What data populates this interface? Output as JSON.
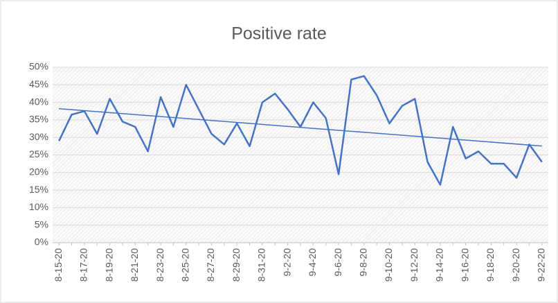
{
  "chart_data": {
    "type": "line",
    "title": "Positive rate",
    "categories": [
      "8-15-20",
      null,
      "8-17-20",
      null,
      "8-19-20",
      null,
      "8-21-20",
      null,
      "8-23-20",
      null,
      "8-25-20",
      null,
      "8-27-20",
      null,
      "8-29-20",
      null,
      "8-31-20",
      null,
      "9-2-20",
      null,
      "9-4-20",
      null,
      "9-6-20",
      null,
      "9-8-20",
      null,
      "9-10-20",
      null,
      "9-12-20",
      null,
      "9-14-20",
      null,
      "9-16-20",
      null,
      "9-18-20",
      null,
      "9-20-20",
      null,
      "9-22-20"
    ],
    "values": [
      29,
      36.5,
      37.5,
      31,
      41,
      34.5,
      33,
      26,
      41.5,
      33,
      45,
      38,
      31,
      28,
      34,
      27.5,
      40,
      42.5,
      38,
      33,
      40,
      35.5,
      19.5,
      46.5,
      47.5,
      42,
      34,
      39,
      41,
      23,
      16.5,
      33,
      24,
      26,
      22.5,
      22.5,
      18.5,
      28,
      23
    ],
    "color": "#4472c4",
    "trendline": "linear",
    "ylim": [
      0,
      50
    ],
    "yticks": [
      {
        "value": 0,
        "label": "0%"
      },
      {
        "value": 5,
        "label": "5%"
      },
      {
        "value": 10,
        "label": "10%"
      },
      {
        "value": 15,
        "label": "15%"
      },
      {
        "value": 20,
        "label": "20%"
      },
      {
        "value": 25,
        "label": "25%"
      },
      {
        "value": 30,
        "label": "30%"
      },
      {
        "value": 35,
        "label": "35%"
      },
      {
        "value": 40,
        "label": "40%"
      },
      {
        "value": 45,
        "label": "45%"
      },
      {
        "value": 50,
        "label": "50%"
      }
    ],
    "grid": true
  }
}
